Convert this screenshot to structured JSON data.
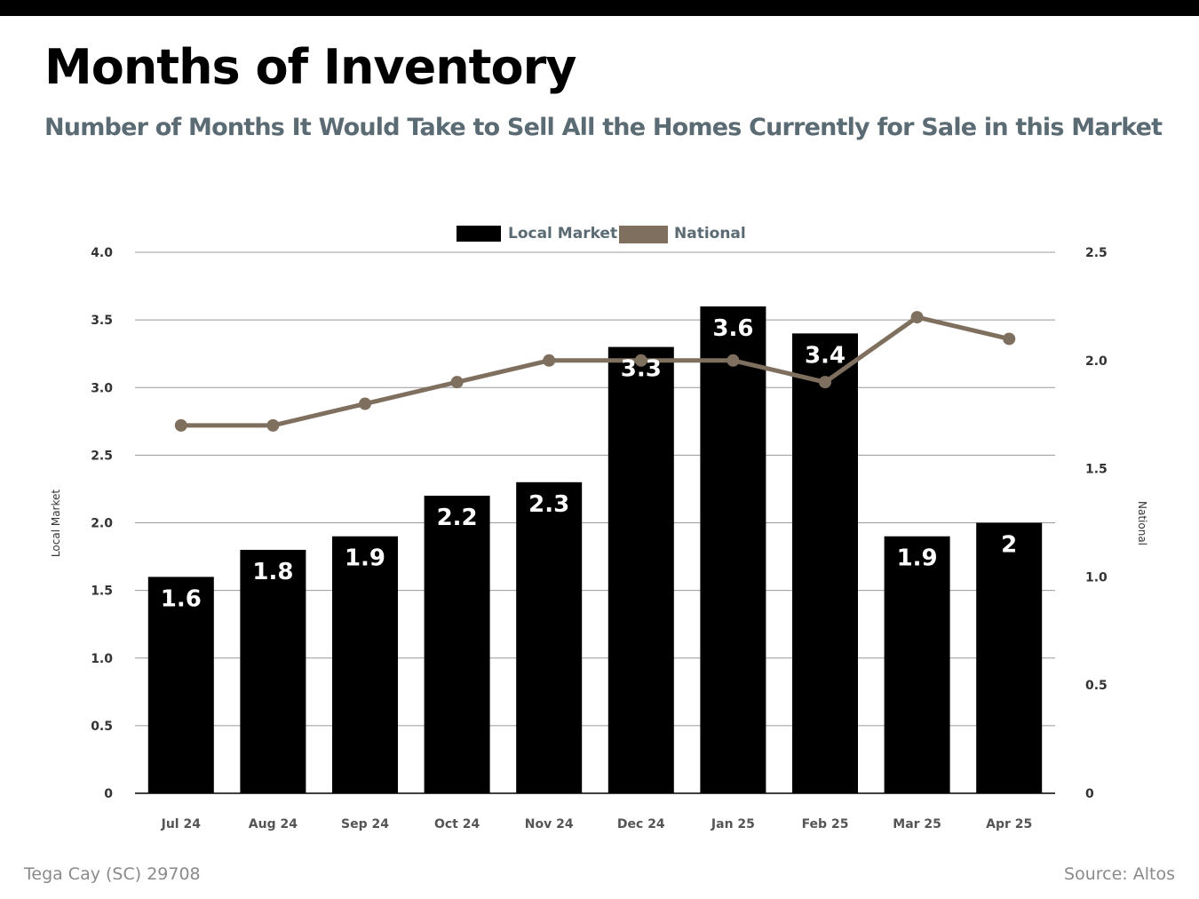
{
  "header": {
    "title": "Months of Inventory",
    "subtitle": "Number of Months It Would Take to Sell All the Homes Currently for Sale in this Market"
  },
  "footer": {
    "location": "Tega Cay (SC) 29708",
    "source": "Source: Altos"
  },
  "colors": {
    "bars": "#000000",
    "national_line": "#7f6f5e",
    "subtitle": "#5b6b73",
    "grid": "#999999",
    "tick": "#333333",
    "footer": "#8a8a8a"
  },
  "chart_data": {
    "type": "bar",
    "title": "",
    "categories": [
      "Jul 24",
      "Aug 24",
      "Sep 24",
      "Oct 24",
      "Nov 24",
      "Dec 24",
      "Jan 25",
      "Feb 25",
      "Mar 25",
      "Apr 25"
    ],
    "series": [
      {
        "name": "Local Market",
        "type": "bar",
        "axis": "left",
        "values": [
          1.6,
          1.8,
          1.9,
          2.2,
          2.3,
          3.3,
          3.6,
          3.4,
          1.9,
          2
        ],
        "labels": [
          "1.6",
          "1.8",
          "1.9",
          "2.2",
          "2.3",
          "3.3",
          "3.6",
          "3.4",
          "1.9",
          "2"
        ]
      },
      {
        "name": "National",
        "type": "line",
        "axis": "right",
        "values": [
          1.7,
          1.7,
          1.8,
          1.9,
          2.0,
          2.0,
          2.0,
          1.9,
          2.2,
          2.1
        ]
      }
    ],
    "left_axis": {
      "label": "Local Market",
      "ylim": [
        0,
        4.0
      ],
      "ticks": [
        "0",
        "0.5",
        "1.0",
        "1.5",
        "2.0",
        "2.5",
        "3.0",
        "3.5",
        "4.0"
      ]
    },
    "right_axis": {
      "label": "National",
      "ylim": [
        0,
        2.5
      ],
      "ticks": [
        "0",
        "0.5",
        "1.0",
        "1.5",
        "2.0",
        "2.5"
      ]
    },
    "grid": true,
    "legend_position": "top-center"
  }
}
